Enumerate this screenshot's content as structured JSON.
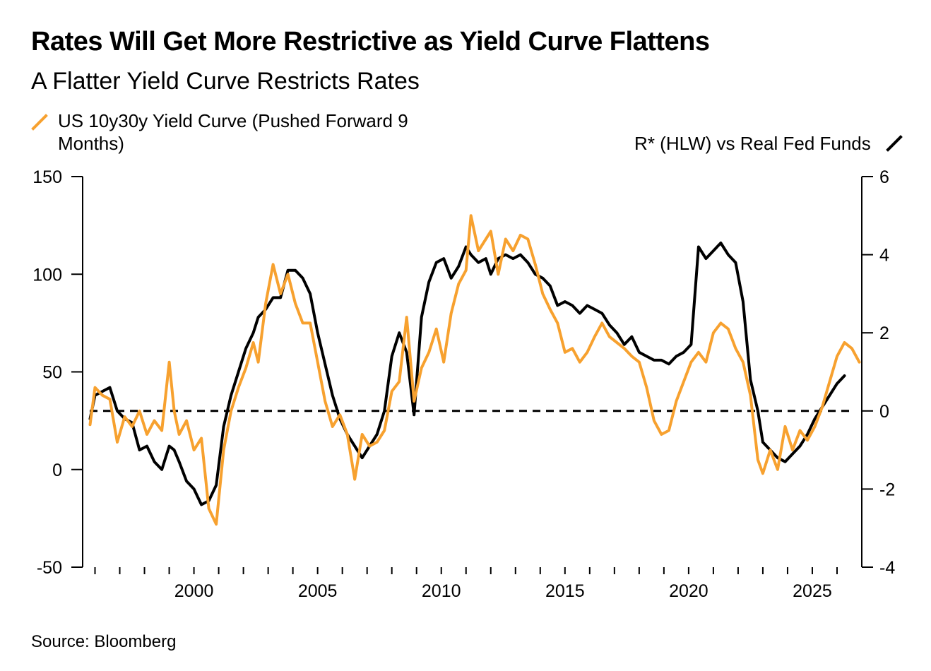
{
  "title": "Rates Will Get More Restrictive as Yield Curve Flattens",
  "subtitle": "A Flatter Yield Curve Restricts Rates",
  "legend": {
    "left_series": "US 10y30y Yield Curve (Pushed Forward 9 Months)",
    "right_series": "R* (HLW) vs Real Fed Funds"
  },
  "source": "Source: Bloomberg",
  "colors": {
    "orange": "#F7A12F",
    "black": "#000000"
  },
  "chart_data": {
    "type": "line",
    "title": "Rates Will Get More Restrictive as Yield Curve Flattens",
    "subtitle": "A Flatter Yield Curve Restricts Rates",
    "legend_placement": "top",
    "grid": false,
    "x_axis": {
      "range": [
        1995.5,
        2027.0
      ],
      "ticks": [
        2000,
        2005,
        2010,
        2015,
        2020,
        2025
      ],
      "tick_labels": [
        "2000",
        "2005",
        "2010",
        "2015",
        "2020",
        "2025"
      ]
    },
    "y_left": {
      "range": [
        -50,
        150
      ],
      "ticks": [
        -50,
        0,
        50,
        100,
        150
      ],
      "tick_labels": [
        "-50",
        "0",
        "50",
        "100",
        "150"
      ]
    },
    "y_right": {
      "range": [
        -4,
        6
      ],
      "ticks": [
        -4,
        -2,
        0,
        2,
        4,
        6
      ],
      "tick_labels": [
        "-4",
        "-2",
        "0",
        "2",
        "4",
        "6"
      ]
    },
    "reference_line": {
      "axis": "right",
      "value": 0,
      "style": "dashed"
    },
    "series": [
      {
        "name": "US 10y30y Yield Curve (Pushed Forward 9 Months)",
        "axis": "left",
        "color": "#F7A12F",
        "x": [
          1995.8,
          1996.0,
          1996.3,
          1996.6,
          1996.9,
          1997.2,
          1997.5,
          1997.8,
          1998.1,
          1998.4,
          1998.7,
          1999.0,
          1999.2,
          1999.4,
          1999.7,
          2000.0,
          2000.3,
          2000.6,
          2000.9,
          2001.2,
          2001.5,
          2001.8,
          2002.1,
          2002.4,
          2002.6,
          2002.9,
          2003.2,
          2003.5,
          2003.8,
          2004.1,
          2004.4,
          2004.7,
          2005.0,
          2005.3,
          2005.6,
          2005.9,
          2006.2,
          2006.5,
          2006.8,
          2007.1,
          2007.4,
          2007.7,
          2008.0,
          2008.3,
          2008.6,
          2008.9,
          2009.2,
          2009.5,
          2009.8,
          2010.1,
          2010.4,
          2010.7,
          2011.0,
          2011.2,
          2011.5,
          2011.8,
          2012.0,
          2012.3,
          2012.6,
          2012.9,
          2013.2,
          2013.5,
          2013.8,
          2014.1,
          2014.4,
          2014.7,
          2015.0,
          2015.3,
          2015.6,
          2015.9,
          2016.2,
          2016.5,
          2016.8,
          2017.1,
          2017.4,
          2017.7,
          2018.0,
          2018.3,
          2018.6,
          2018.9,
          2019.2,
          2019.5,
          2019.8,
          2020.1,
          2020.4,
          2020.7,
          2021.0,
          2021.3,
          2021.6,
          2021.9,
          2022.2,
          2022.5,
          2022.8,
          2023.0,
          2023.3,
          2023.6,
          2023.9,
          2024.2,
          2024.5,
          2024.8,
          2025.1,
          2025.4,
          2025.7,
          2026.0,
          2026.3,
          2026.6,
          2026.9
        ],
        "values": [
          23,
          42,
          38,
          36,
          14,
          27,
          22,
          30,
          18,
          25,
          20,
          55,
          30,
          18,
          25,
          10,
          16,
          -20,
          -28,
          10,
          30,
          42,
          52,
          65,
          55,
          85,
          105,
          90,
          100,
          85,
          75,
          75,
          55,
          35,
          22,
          28,
          18,
          -5,
          18,
          12,
          14,
          20,
          40,
          45,
          78,
          35,
          52,
          60,
          72,
          55,
          80,
          95,
          102,
          130,
          112,
          118,
          122,
          100,
          118,
          112,
          120,
          118,
          105,
          90,
          82,
          75,
          60,
          62,
          55,
          60,
          68,
          75,
          68,
          65,
          62,
          58,
          55,
          42,
          25,
          18,
          20,
          35,
          45,
          55,
          60,
          55,
          70,
          75,
          72,
          62,
          55,
          38,
          5,
          -2,
          10,
          0,
          22,
          10,
          20,
          15,
          22,
          32,
          45,
          58,
          65,
          62,
          55
        ]
      },
      {
        "name": "R* (HLW) vs Real Fed Funds",
        "axis": "right",
        "color": "#000000",
        "x": [
          1995.8,
          1996.0,
          1996.3,
          1996.6,
          1996.9,
          1997.2,
          1997.5,
          1997.8,
          1998.1,
          1998.4,
          1998.7,
          1999.0,
          1999.2,
          1999.4,
          1999.7,
          2000.0,
          2000.3,
          2000.6,
          2000.9,
          2001.2,
          2001.5,
          2001.8,
          2002.1,
          2002.4,
          2002.6,
          2002.9,
          2003.2,
          2003.5,
          2003.8,
          2004.1,
          2004.4,
          2004.7,
          2005.0,
          2005.3,
          2005.6,
          2005.9,
          2006.2,
          2006.5,
          2006.8,
          2007.1,
          2007.4,
          2007.7,
          2008.0,
          2008.3,
          2008.6,
          2008.9,
          2009.2,
          2009.5,
          2009.8,
          2010.1,
          2010.4,
          2010.7,
          2011.0,
          2011.2,
          2011.5,
          2011.8,
          2012.0,
          2012.3,
          2012.6,
          2012.9,
          2013.2,
          2013.5,
          2013.8,
          2014.1,
          2014.4,
          2014.7,
          2015.0,
          2015.3,
          2015.6,
          2015.9,
          2016.2,
          2016.5,
          2016.8,
          2017.1,
          2017.4,
          2017.7,
          2018.0,
          2018.3,
          2018.6,
          2018.9,
          2019.2,
          2019.5,
          2019.8,
          2020.1,
          2020.4,
          2020.7,
          2021.0,
          2021.3,
          2021.6,
          2021.9,
          2022.2,
          2022.5,
          2022.8,
          2023.0,
          2023.3,
          2023.6,
          2023.9,
          2024.2,
          2024.5,
          2024.8,
          2025.1,
          2025.4,
          2025.7,
          2026.0,
          2026.3
        ],
        "values": [
          -0.2,
          0.4,
          0.5,
          0.6,
          0.0,
          -0.2,
          -0.3,
          -1.0,
          -0.9,
          -1.3,
          -1.5,
          -0.9,
          -1.0,
          -1.3,
          -1.8,
          -2.0,
          -2.4,
          -2.3,
          -1.9,
          -0.4,
          0.4,
          1.0,
          1.6,
          2.0,
          2.4,
          2.6,
          2.9,
          2.9,
          3.6,
          3.6,
          3.4,
          3.0,
          2.0,
          1.2,
          0.4,
          -0.2,
          -0.6,
          -0.9,
          -1.2,
          -0.9,
          -0.6,
          0.0,
          1.4,
          2.0,
          1.5,
          -0.1,
          2.4,
          3.3,
          3.8,
          3.9,
          3.4,
          3.7,
          4.2,
          4.0,
          3.8,
          3.9,
          3.5,
          3.9,
          4.0,
          3.9,
          4.0,
          3.8,
          3.5,
          3.4,
          3.2,
          2.7,
          2.8,
          2.7,
          2.5,
          2.7,
          2.6,
          2.5,
          2.2,
          2.0,
          1.7,
          1.9,
          1.5,
          1.4,
          1.3,
          1.3,
          1.2,
          1.4,
          1.5,
          1.7,
          4.2,
          3.9,
          4.1,
          4.3,
          4.0,
          3.8,
          2.8,
          0.8,
          0.0,
          -0.8,
          -1.0,
          -1.2,
          -1.3,
          -1.1,
          -0.9,
          -0.6,
          -0.2,
          0.1,
          0.4,
          0.7,
          0.9
        ]
      }
    ]
  }
}
